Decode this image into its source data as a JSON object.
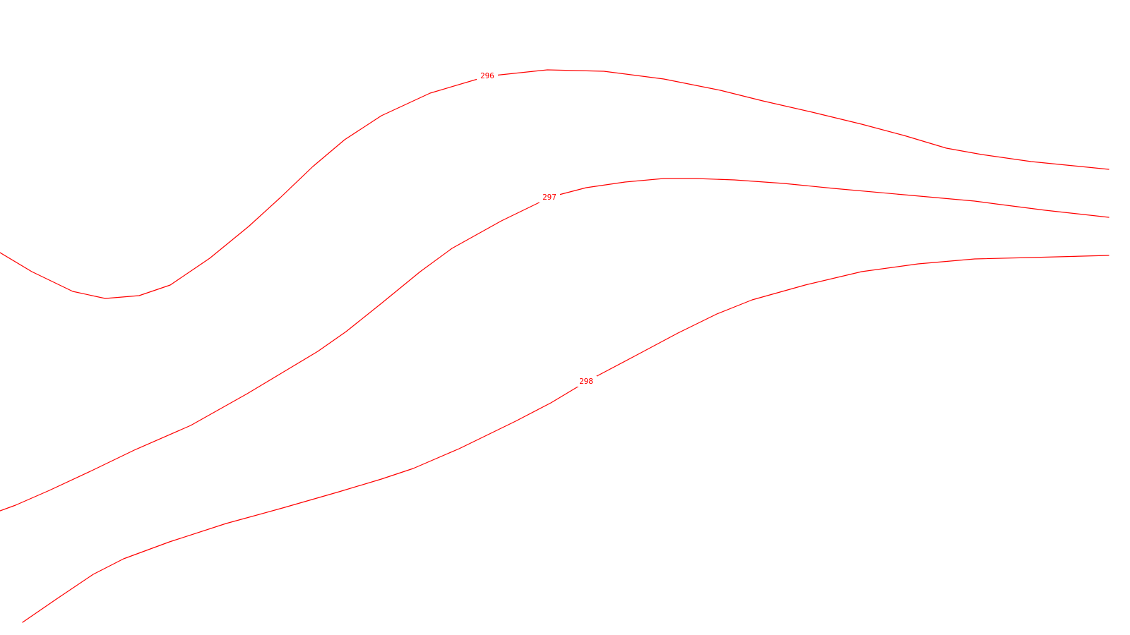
{
  "map": {
    "background": "#ffffff",
    "line_color": "#ff0000",
    "contours": [
      {
        "id": "c296",
        "label": "296"
      },
      {
        "id": "c297",
        "label": "297"
      },
      {
        "id": "c298",
        "label": "298"
      }
    ]
  }
}
